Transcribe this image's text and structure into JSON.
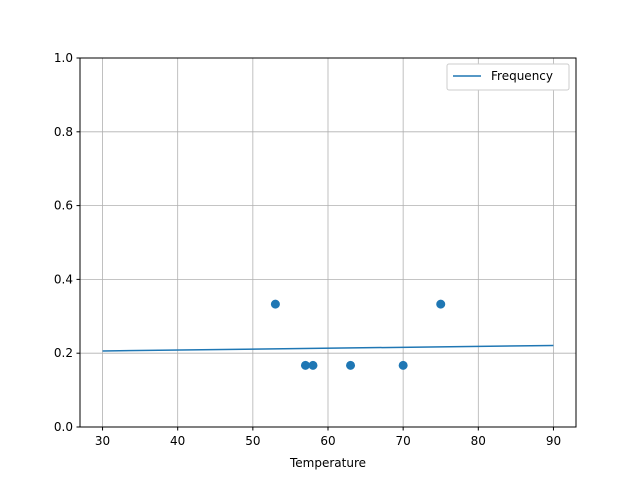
{
  "chart_data": {
    "type": "scatter",
    "title": "",
    "xlabel": "Temperature",
    "ylabel": "",
    "xlim": [
      27,
      93
    ],
    "ylim": [
      0,
      1.0
    ],
    "grid": true,
    "legend_position": "top-right",
    "x_ticks": [
      30,
      40,
      50,
      60,
      70,
      80,
      90
    ],
    "y_ticks": [
      0.0,
      0.2,
      0.4,
      0.6,
      0.8,
      1.0
    ],
    "x_tick_labels": [
      "30",
      "40",
      "50",
      "60",
      "70",
      "80",
      "90"
    ],
    "y_tick_labels": [
      "0.0",
      "0.2",
      "0.4",
      "0.6",
      "0.8",
      "1.0"
    ],
    "color": "#1f77b4",
    "scatter_points": [
      {
        "x": 53,
        "y": 0.333
      },
      {
        "x": 57,
        "y": 0.167
      },
      {
        "x": 58,
        "y": 0.167
      },
      {
        "x": 63,
        "y": 0.167
      },
      {
        "x": 70,
        "y": 0.167
      },
      {
        "x": 75,
        "y": 0.333
      }
    ],
    "series": [
      {
        "name": "Frequency",
        "type": "line",
        "x": [
          30,
          90
        ],
        "y": [
          0.206,
          0.221
        ]
      }
    ],
    "legend": [
      "Frequency"
    ]
  }
}
